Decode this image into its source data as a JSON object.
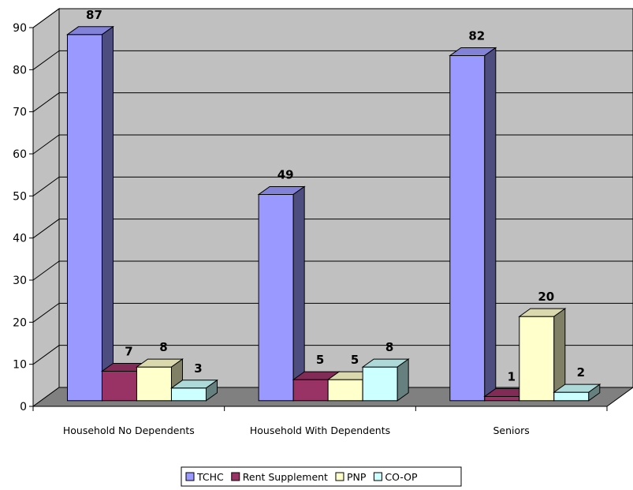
{
  "chart_data": {
    "type": "bar",
    "categories": [
      "Household No Dependents",
      "Household With Dependents",
      "Seniors"
    ],
    "series": [
      {
        "name": "TCHC",
        "values": [
          87,
          49,
          82
        ],
        "color": "#9999ff"
      },
      {
        "name": "Rent Supplement",
        "values": [
          7,
          5,
          1
        ],
        "color": "#993366"
      },
      {
        "name": "PNP",
        "values": [
          8,
          5,
          20
        ],
        "color": "#ffffcc"
      },
      {
        "name": "CO-OP",
        "values": [
          3,
          8,
          2
        ],
        "color": "#ccffff"
      }
    ],
    "ylim": [
      0,
      90
    ],
    "yticks": [
      0,
      10,
      20,
      30,
      40,
      50,
      60,
      70,
      80,
      90
    ],
    "legend_position": "bottom",
    "grid": true,
    "style": "3d-clustered-column",
    "wall_color": "#c0c0c0",
    "floor_color": "#808080"
  }
}
